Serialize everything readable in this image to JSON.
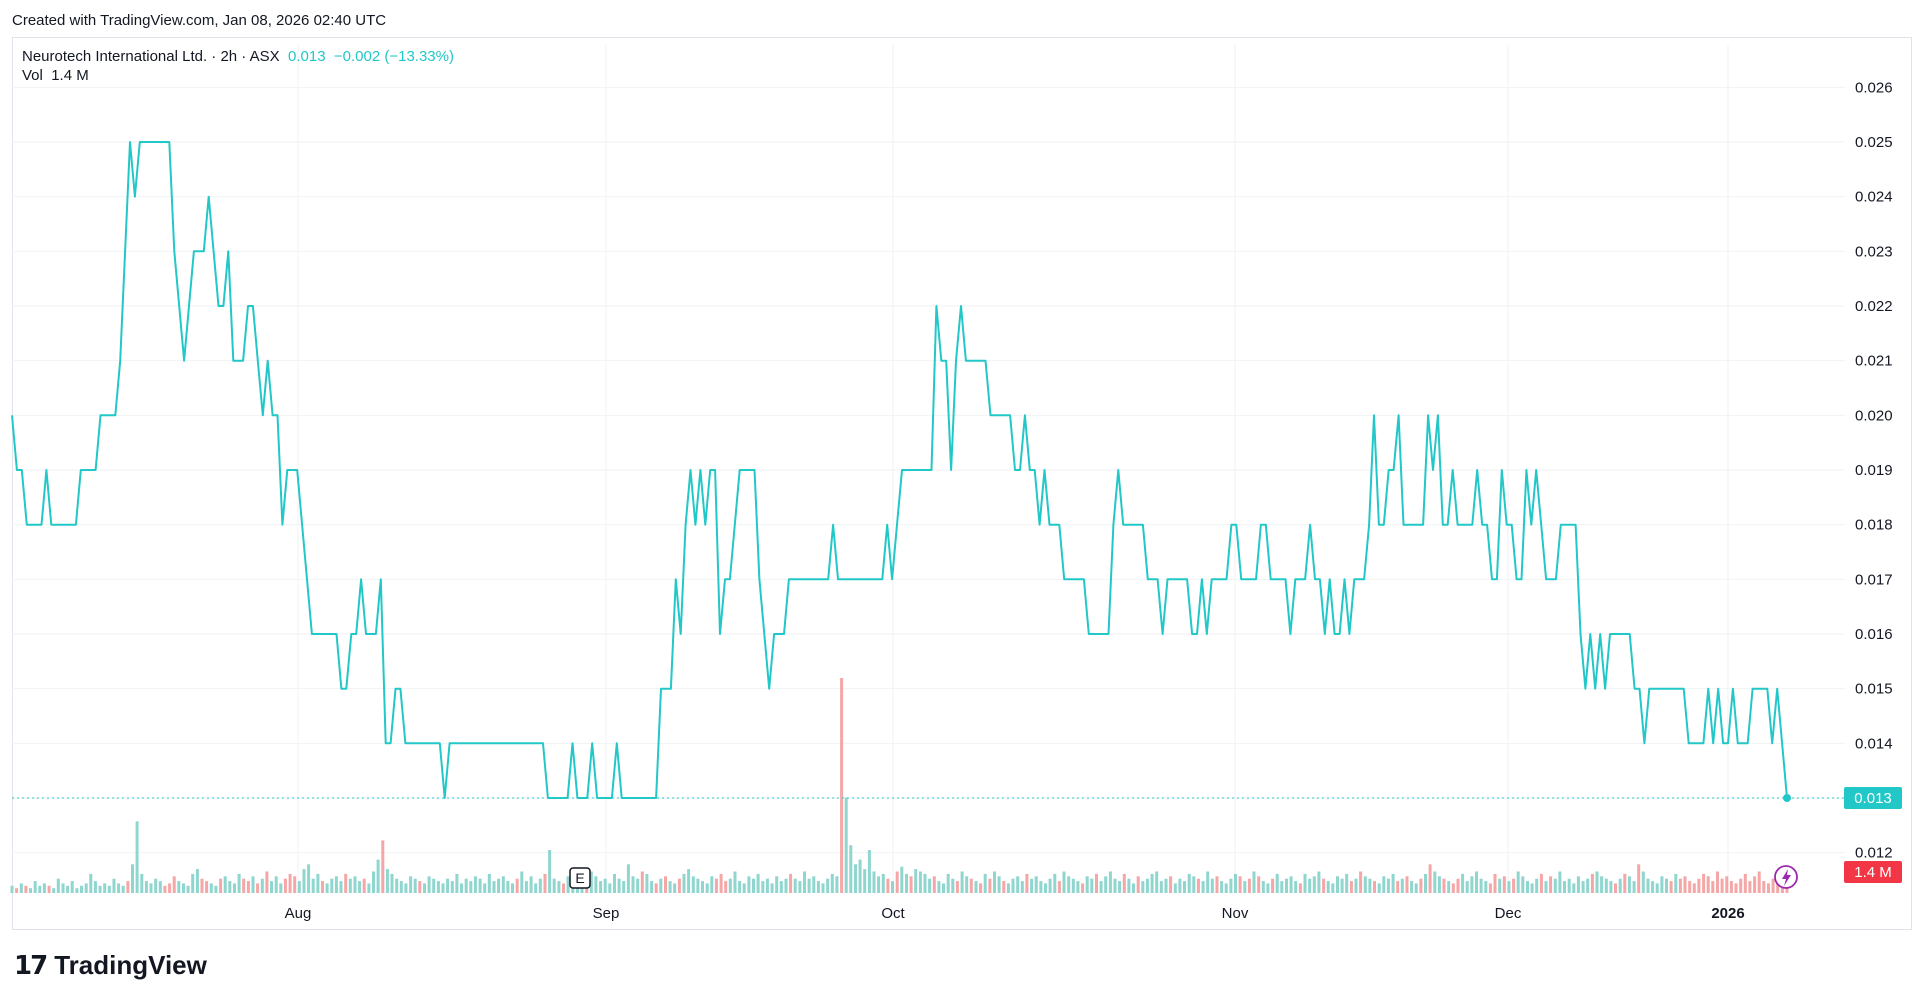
{
  "credit": "Created with TradingView.com, Jan 08, 2026 02:40 UTC",
  "legend": {
    "symbol": "Neurotech International Ltd. · 2h · ASX",
    "last": "0.013",
    "change": "−0.002 (−13.33%)",
    "vol_label": "Vol",
    "vol_value": "1.4 M"
  },
  "colors": {
    "line": "#22c7c7",
    "vol_up": "#8fd6cf",
    "vol_down": "#f5a6a6",
    "grid": "#f0f2f5",
    "price_tag": "#22c7c7",
    "vol_tag": "#f23645"
  },
  "badges": {
    "earnings": "E"
  },
  "logo": {
    "word": "TradingView",
    "mark": "TV-logo-icon"
  },
  "chart_data": {
    "type": "line",
    "ylim": [
      0.0115,
      0.0265
    ],
    "y_ticks": [
      "0.026",
      "0.025",
      "0.024",
      "0.023",
      "0.022",
      "0.021",
      "0.020",
      "0.019",
      "0.018",
      "0.017",
      "0.016",
      "0.015",
      "0.014",
      "0.013",
      "0.012"
    ],
    "x_ticks": [
      "Aug",
      "Sep",
      "Oct",
      "Nov",
      "Dec",
      "2026"
    ],
    "last_price_label": "0.013",
    "last_volume_label": "1.4 M",
    "series": [
      {
        "values": [
          0.02,
          0.019,
          0.019,
          0.018,
          0.018,
          0.018,
          0.018,
          0.019,
          0.018,
          0.018,
          0.018,
          0.018,
          0.018,
          0.018,
          0.019,
          0.019,
          0.019,
          0.019,
          0.02,
          0.02,
          0.02,
          0.02,
          0.021,
          0.023,
          0.025,
          0.024,
          0.025,
          0.025,
          0.025,
          0.025,
          0.025,
          0.025,
          0.025,
          0.023,
          0.022,
          0.021,
          0.022,
          0.023,
          0.023,
          0.023,
          0.024,
          0.023,
          0.022,
          0.022,
          0.023,
          0.021,
          0.021,
          0.021,
          0.022,
          0.022,
          0.021,
          0.02,
          0.021,
          0.02,
          0.02,
          0.018,
          0.019,
          0.019,
          0.019,
          0.018,
          0.017,
          0.016,
          0.016,
          0.016,
          0.016,
          0.016,
          0.016,
          0.015,
          0.015,
          0.016,
          0.016,
          0.017,
          0.016,
          0.016,
          0.016,
          0.017,
          0.014,
          0.014,
          0.015,
          0.015,
          0.014,
          0.014,
          0.014,
          0.014,
          0.014,
          0.014,
          0.014,
          0.014,
          0.013,
          0.014,
          0.014,
          0.014,
          0.014,
          0.014,
          0.014,
          0.014,
          0.014,
          0.014,
          0.014,
          0.014,
          0.014,
          0.014,
          0.014,
          0.014,
          0.014,
          0.014,
          0.014,
          0.014,
          0.014,
          0.013,
          0.013,
          0.013,
          0.013,
          0.013,
          0.014,
          0.013,
          0.013,
          0.013,
          0.014,
          0.013,
          0.013,
          0.013,
          0.013,
          0.014,
          0.013,
          0.013,
          0.013,
          0.013,
          0.013,
          0.013,
          0.013,
          0.013,
          0.015,
          0.015,
          0.015,
          0.017,
          0.016,
          0.018,
          0.019,
          0.018,
          0.019,
          0.018,
          0.019,
          0.019,
          0.016,
          0.017,
          0.017,
          0.018,
          0.019,
          0.019,
          0.019,
          0.019,
          0.017,
          0.016,
          0.015,
          0.016,
          0.016,
          0.016,
          0.017,
          0.017,
          0.017,
          0.017,
          0.017,
          0.017,
          0.017,
          0.017,
          0.017,
          0.018,
          0.017,
          0.017,
          0.017,
          0.017,
          0.017,
          0.017,
          0.017,
          0.017,
          0.017,
          0.017,
          0.018,
          0.017,
          0.018,
          0.019,
          0.019,
          0.019,
          0.019,
          0.019,
          0.019,
          0.019,
          0.022,
          0.021,
          0.021,
          0.019,
          0.021,
          0.022,
          0.021,
          0.021,
          0.021,
          0.021,
          0.021,
          0.02,
          0.02,
          0.02,
          0.02,
          0.02,
          0.019,
          0.019,
          0.02,
          0.019,
          0.019,
          0.018,
          0.019,
          0.018,
          0.018,
          0.018,
          0.017,
          0.017,
          0.017,
          0.017,
          0.017,
          0.016,
          0.016,
          0.016,
          0.016,
          0.016,
          0.018,
          0.019,
          0.018,
          0.018,
          0.018,
          0.018,
          0.018,
          0.017,
          0.017,
          0.017,
          0.016,
          0.017,
          0.017,
          0.017,
          0.017,
          0.017,
          0.016,
          0.016,
          0.017,
          0.016,
          0.017,
          0.017,
          0.017,
          0.017,
          0.018,
          0.018,
          0.017,
          0.017,
          0.017,
          0.017,
          0.018,
          0.018,
          0.017,
          0.017,
          0.017,
          0.017,
          0.016,
          0.017,
          0.017,
          0.017,
          0.018,
          0.017,
          0.017,
          0.016,
          0.017,
          0.016,
          0.016,
          0.017,
          0.016,
          0.017,
          0.017,
          0.017,
          0.018,
          0.02,
          0.018,
          0.018,
          0.019,
          0.019,
          0.02,
          0.018,
          0.018,
          0.018,
          0.018,
          0.018,
          0.02,
          0.019,
          0.02,
          0.018,
          0.018,
          0.019,
          0.018,
          0.018,
          0.018,
          0.018,
          0.019,
          0.018,
          0.018,
          0.017,
          0.017,
          0.019,
          0.018,
          0.018,
          0.017,
          0.017,
          0.019,
          0.018,
          0.019,
          0.018,
          0.017,
          0.017,
          0.017,
          0.018,
          0.018,
          0.018,
          0.018,
          0.016,
          0.015,
          0.016,
          0.015,
          0.016,
          0.015,
          0.016,
          0.016,
          0.016,
          0.016,
          0.016,
          0.015,
          0.015,
          0.014,
          0.015,
          0.015,
          0.015,
          0.015,
          0.015,
          0.015,
          0.015,
          0.015,
          0.014,
          0.014,
          0.014,
          0.014,
          0.015,
          0.014,
          0.015,
          0.014,
          0.014,
          0.015,
          0.014,
          0.014,
          0.014,
          0.015,
          0.015,
          0.015,
          0.015,
          0.014,
          0.015,
          0.014,
          0.013
        ]
      }
    ],
    "volume": [
      3,
      2,
      4,
      3,
      2,
      5,
      3,
      4,
      3,
      2,
      6,
      4,
      3,
      5,
      2,
      3,
      4,
      8,
      5,
      3,
      4,
      3,
      6,
      4,
      3,
      5,
      12,
      30,
      8,
      5,
      4,
      6,
      5,
      3,
      4,
      7,
      5,
      4,
      3,
      8,
      10,
      6,
      5,
      4,
      3,
      6,
      7,
      5,
      4,
      8,
      6,
      5,
      7,
      4,
      6,
      9,
      5,
      7,
      4,
      6,
      8,
      7,
      5,
      10,
      12,
      6,
      8,
      5,
      4,
      6,
      7,
      5,
      8,
      6,
      7,
      5,
      6,
      4,
      9,
      14,
      22,
      10,
      8,
      6,
      5,
      4,
      7,
      6,
      5,
      4,
      7,
      6,
      5,
      4,
      6,
      5,
      8,
      4,
      6,
      5,
      7,
      6,
      4,
      8,
      5,
      6,
      7,
      5,
      4,
      6,
      9,
      5,
      7,
      4,
      6,
      8,
      18,
      6,
      5,
      4,
      7,
      6,
      5,
      8,
      6,
      9,
      7,
      5,
      6,
      4,
      8,
      6,
      5,
      12,
      7,
      6,
      9,
      8,
      5,
      4,
      6,
      7,
      5,
      4,
      6,
      8,
      10,
      7,
      6,
      5,
      4,
      7,
      6,
      8,
      5,
      6,
      9,
      5,
      4,
      7,
      6,
      8,
      5,
      6,
      4,
      7,
      5,
      6,
      8,
      6,
      5,
      9,
      6,
      7,
      5,
      4,
      6,
      8,
      7,
      90,
      40,
      20,
      12,
      14,
      10,
      18,
      9,
      7,
      8,
      6,
      5,
      9,
      11,
      8,
      7,
      10,
      9,
      8,
      6,
      7,
      5,
      4,
      8,
      6,
      5,
      9,
      7,
      6,
      5,
      4,
      8,
      6,
      9,
      7,
      5,
      4,
      6,
      7,
      5,
      8,
      6,
      7,
      5,
      4,
      6,
      8,
      5,
      9,
      7,
      6,
      5,
      4,
      7,
      6,
      8,
      5,
      7,
      9,
      6,
      5,
      8,
      6,
      4,
      7,
      5,
      6,
      8,
      9,
      5,
      6,
      7,
      4,
      6,
      5,
      8,
      7,
      6,
      5,
      9,
      6,
      7,
      5,
      4,
      6,
      8,
      7,
      5,
      6,
      9,
      7,
      5,
      4,
      6,
      8,
      5,
      6,
      7,
      5,
      4,
      8,
      6,
      7,
      9,
      6,
      5,
      4,
      7,
      6,
      8,
      5,
      6,
      9,
      7,
      6,
      5,
      4,
      7,
      6,
      8,
      5,
      6,
      7,
      5,
      4,
      6,
      8,
      12,
      9,
      7,
      6,
      5,
      4,
      6,
      8,
      5,
      7,
      9,
      6,
      5,
      4,
      8,
      6,
      7,
      5,
      6,
      9,
      7,
      5,
      4,
      6,
      8,
      5,
      7,
      6,
      9,
      5,
      6,
      4,
      7,
      5,
      6,
      8,
      9,
      7,
      6,
      5,
      4,
      6,
      8,
      7,
      5,
      12,
      9,
      6,
      5,
      4,
      7,
      6,
      5,
      8,
      6,
      7,
      5,
      4,
      6,
      8,
      7,
      5,
      9,
      6,
      7,
      5,
      4,
      6,
      8,
      5,
      7,
      9,
      5,
      4,
      6,
      7,
      5,
      8
    ]
  }
}
